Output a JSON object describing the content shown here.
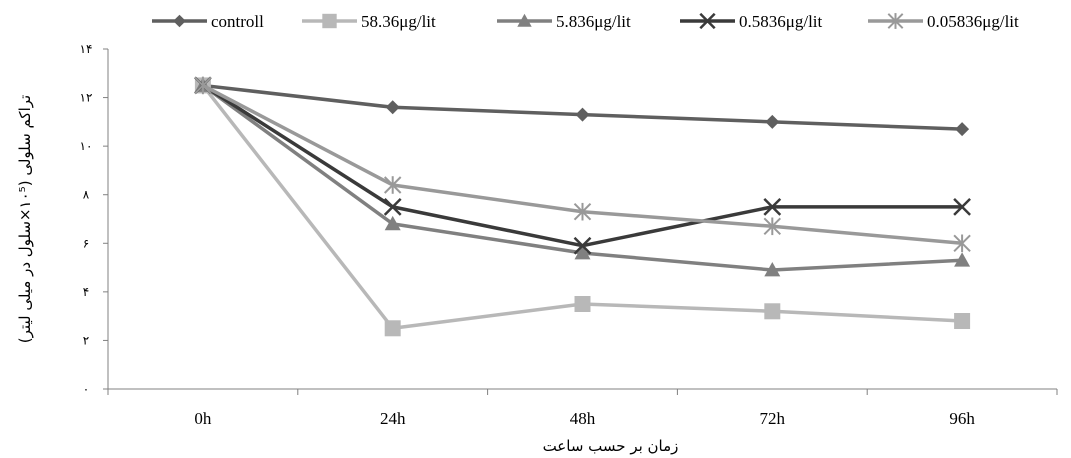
{
  "chart_data": {
    "type": "line",
    "title": "",
    "xlabel": "زمان بر حسب ساعت",
    "ylabel": "تراکم سلولی (۱۰⁵×سلول در میلی لیتر)",
    "categories": [
      "0h",
      "24h",
      "48h",
      "72h",
      "96h"
    ],
    "ylim": [
      0,
      14
    ],
    "y_ticks": [
      {
        "value": 0,
        "label": "۰"
      },
      {
        "value": 2,
        "label": "۲"
      },
      {
        "value": 4,
        "label": "۴"
      },
      {
        "value": 6,
        "label": "۶"
      },
      {
        "value": 8,
        "label": "۸"
      },
      {
        "value": 10,
        "label": "۱۰"
      },
      {
        "value": 12,
        "label": "۱۲"
      },
      {
        "value": 14,
        "label": "۱۴"
      }
    ],
    "grid": false,
    "legend_position": "top",
    "series": [
      {
        "name": "controll",
        "values": [
          12.5,
          11.6,
          11.3,
          11.0,
          10.7
        ],
        "color": "#5f5f5f",
        "marker": "diamond"
      },
      {
        "name": "58.36μg/lit",
        "values": [
          12.5,
          2.5,
          3.5,
          3.2,
          2.8
        ],
        "color": "#b8b8b8",
        "marker": "square"
      },
      {
        "name": "5.836μg/lit",
        "values": [
          12.5,
          6.8,
          5.6,
          4.9,
          5.3
        ],
        "color": "#808080",
        "marker": "triangle"
      },
      {
        "name": "0.5836μg/lit",
        "values": [
          12.5,
          7.5,
          5.9,
          7.5,
          7.5
        ],
        "color": "#3a3a3a",
        "marker": "x"
      },
      {
        "name": "0.05836μg/lit",
        "values": [
          12.5,
          8.4,
          7.3,
          6.7,
          6.0
        ],
        "color": "#999999",
        "marker": "star"
      }
    ]
  }
}
